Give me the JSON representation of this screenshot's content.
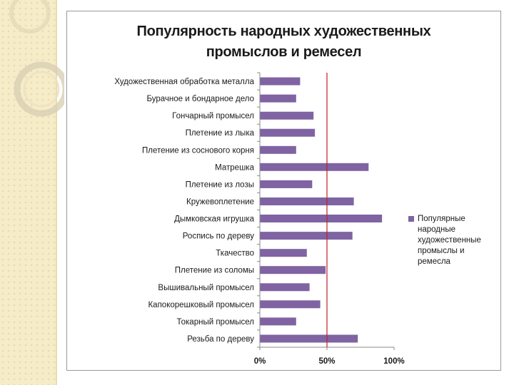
{
  "colors": {
    "bar": "#7f63a2",
    "reference_line": "#c0202a",
    "axis": "#8a8a8a"
  },
  "chart_data": {
    "type": "bar",
    "orientation": "horizontal",
    "title": [
      "Популярность народных художественных",
      "промыслов и ремесел"
    ],
    "categories": [
      "Художественная обработка металла",
      "Бурачное и бондарное дело",
      "Гончарный промысел",
      "Плетение из лыка",
      "Плетение из соснового корня",
      "Матрешка",
      "Плетение из лозы",
      "Кружевоплетение",
      "Дымковская игрушка",
      "Роспись по дереву",
      "Ткачество",
      "Плетение из соломы",
      "Вышивальный промысел",
      "Капокорешковый промысел",
      "Токарный промысел",
      "Резьба по дереву"
    ],
    "series": [
      {
        "name": "Популярные народные художественные промыслы и ремесла",
        "values": [
          30,
          27,
          40,
          41,
          27,
          81,
          39,
          70,
          91,
          69,
          35,
          49,
          37,
          45,
          27,
          73
        ]
      }
    ],
    "xlim": [
      0,
      100
    ],
    "xticks": [
      "0%",
      "50%",
      "100%"
    ],
    "reference_line_value": 50,
    "legend_position": "right"
  }
}
